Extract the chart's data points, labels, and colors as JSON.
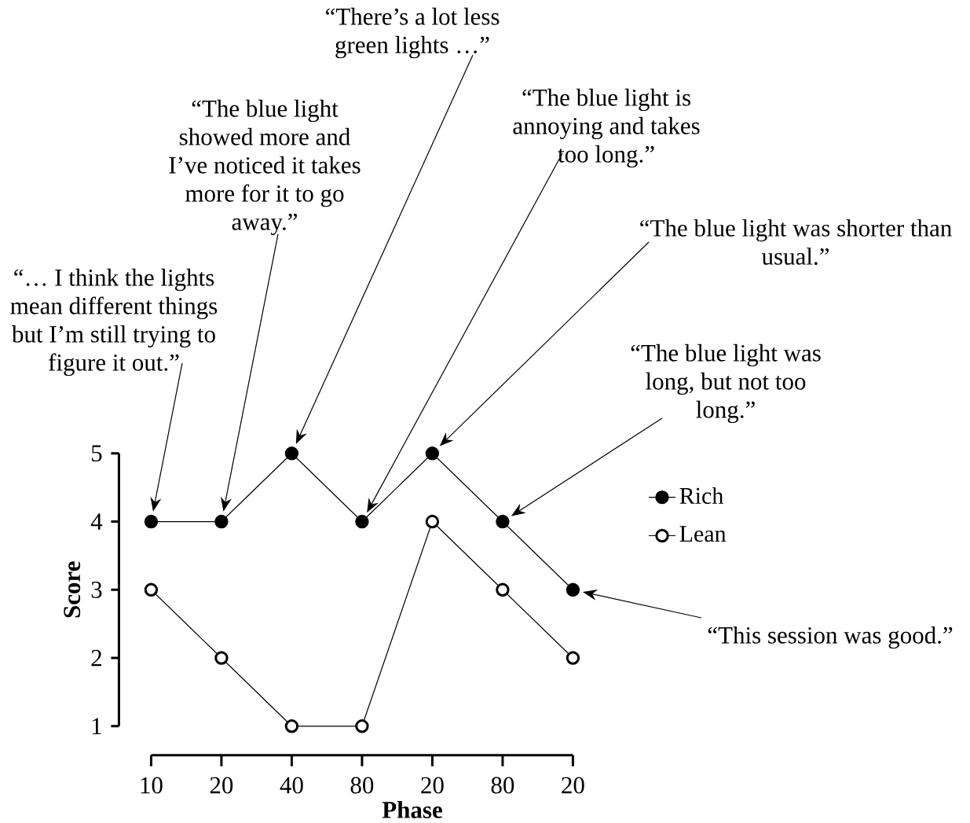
{
  "chart_data": {
    "type": "line",
    "xlabel": "Phase",
    "ylabel": "Score",
    "categories": [
      "10",
      "20",
      "40",
      "80",
      "20",
      "80",
      "20"
    ],
    "series": [
      {
        "name": "Rich",
        "color": "#000000",
        "values": [
          4,
          4,
          5,
          4,
          5,
          4,
          3
        ]
      },
      {
        "name": "Lean",
        "color": "#000000",
        "values": [
          3,
          2,
          1,
          1,
          4,
          3,
          2
        ]
      }
    ],
    "ylim": [
      1,
      5
    ],
    "yticks": [
      1,
      2,
      3,
      4,
      5
    ],
    "marker": "circle",
    "line_style": "solid",
    "legend": "right",
    "annotations": [
      "“… I think the lights mean different things but I’m still trying to figure it out.”",
      "“The blue light showed more and I’ve noticed it takes more for it to go away.”",
      "“There’s a lot less green lights …”",
      "“The blue light is annoying and takes too long.”",
      "“The blue light was shorter than usual.”",
      "“The blue light was long, but not too long.”",
      "“This session was good.”"
    ]
  }
}
